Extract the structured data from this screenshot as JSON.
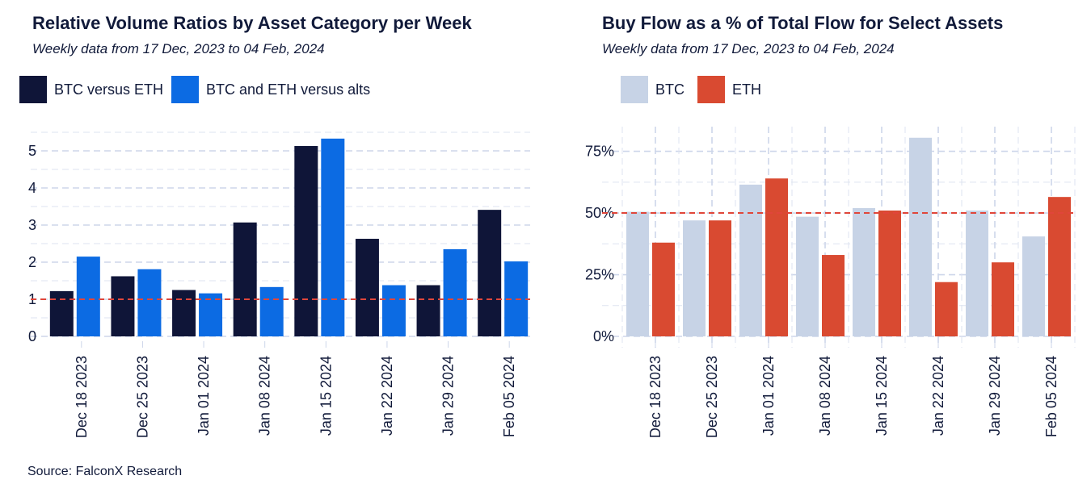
{
  "source": "Source: FalconX Research",
  "chart_data": [
    {
      "type": "bar",
      "title": "Relative Volume Ratios by Asset Category per Week",
      "subtitle": "Weekly data from 17 Dec, 2023 to 04 Feb, 2024",
      "categories": [
        "Dec 18 2023",
        "Dec 25 2023",
        "Jan 01 2024",
        "Jan 08 2024",
        "Jan 15 2024",
        "Jan 22 2024",
        "Jan 29 2024",
        "Feb 05 2024"
      ],
      "series": [
        {
          "name": "BTC versus ETH",
          "color": "#0f1538",
          "values": [
            1.22,
            1.62,
            1.25,
            3.07,
            5.13,
            2.63,
            1.38,
            3.41
          ]
        },
        {
          "name": "BTC and ETH versus alts",
          "color": "#0c6be3",
          "values": [
            2.15,
            1.81,
            1.16,
            1.33,
            5.33,
            1.38,
            2.35,
            2.02
          ]
        }
      ],
      "ylim": [
        0,
        5.5
      ],
      "yticks": [
        0,
        1,
        2,
        3,
        4,
        5
      ],
      "ytick_labels": [
        "0",
        "1",
        "2",
        "3",
        "4",
        "5"
      ],
      "reference_line": {
        "value": 1,
        "color": "#e0463a",
        "style": "dashed"
      },
      "grid": true,
      "legend_position": "top-left"
    },
    {
      "type": "bar",
      "title": "Buy Flow as a % of Total Flow for Select Assets",
      "subtitle": "Weekly data from 17 Dec, 2023 to 04 Feb, 2024",
      "categories": [
        "Dec 18 2023",
        "Dec 25 2023",
        "Jan 01 2024",
        "Jan 08 2024",
        "Jan 15 2024",
        "Jan 22 2024",
        "Jan 29 2024",
        "Feb 05 2024"
      ],
      "series": [
        {
          "name": "BTC",
          "color": "#c7d3e6",
          "values": [
            50.5,
            47,
            61.5,
            48.5,
            52,
            80.5,
            51,
            40.5
          ]
        },
        {
          "name": "ETH",
          "color": "#d94a31",
          "values": [
            38,
            47,
            64,
            33,
            null,
            22,
            30,
            56.5
          ]
        }
      ],
      "extra_eth_bar_jan15": 51,
      "ylim": [
        0,
        85
      ],
      "yticks": [
        0,
        25,
        50,
        75
      ],
      "ytick_labels": [
        "0%",
        "25%",
        "50%",
        "75%"
      ],
      "reference_line": {
        "value": 50,
        "color": "#e0463a",
        "style": "dashed"
      },
      "grid": true,
      "legend_position": "top-left"
    }
  ]
}
